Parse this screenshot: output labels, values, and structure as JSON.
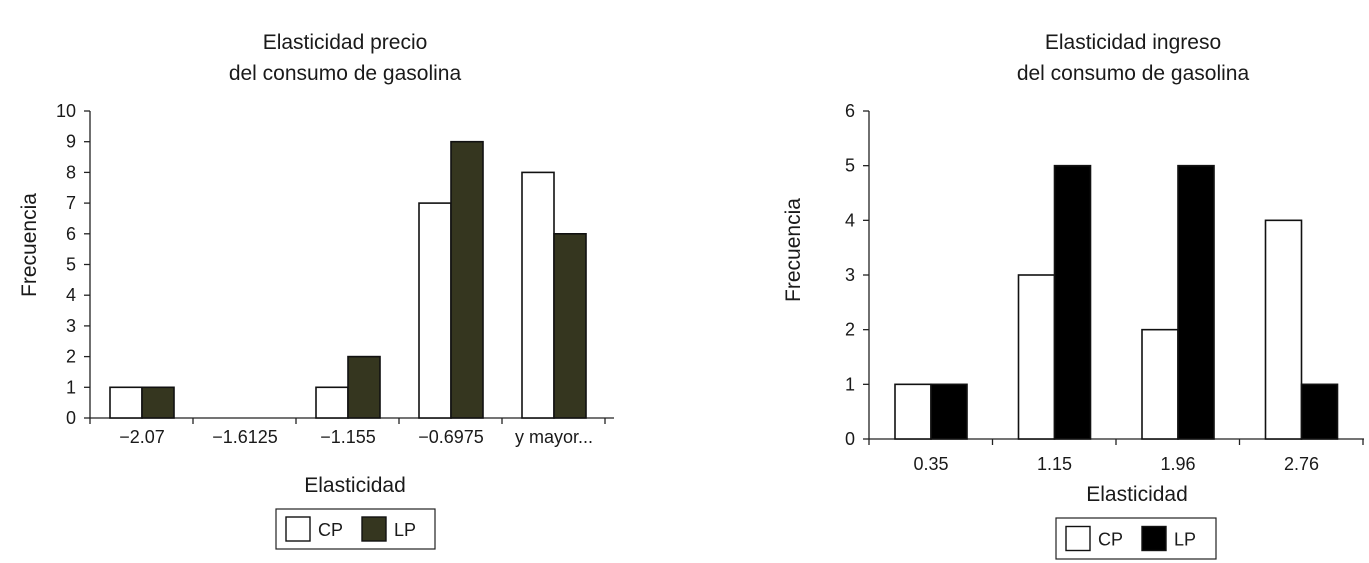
{
  "chart_data": [
    {
      "type": "bar",
      "title": [
        "Elasticidad precio",
        "del consumo de gasolina"
      ],
      "xlabel": "Elasticidad",
      "ylabel": "Frecuencia",
      "categories": [
        "−2.07",
        "−1.6125",
        "−1.155",
        "−0.6975",
        "y mayor..."
      ],
      "ylim": [
        0,
        10
      ],
      "yticks": [
        0,
        1,
        2,
        3,
        4,
        5,
        6,
        7,
        8,
        9,
        10
      ],
      "series": [
        {
          "name": "CP",
          "values": [
            1,
            0,
            1,
            7,
            8
          ],
          "color": "#ffffff"
        },
        {
          "name": "LP",
          "values": [
            1,
            0,
            2,
            9,
            6
          ],
          "color": "#35361f"
        }
      ],
      "grid": false,
      "legend": "bottom-center"
    },
    {
      "type": "bar",
      "title": [
        "Elasticidad ingreso",
        "del consumo de gasolina"
      ],
      "xlabel": "Elasticidad",
      "ylabel": "Frecuencia",
      "categories": [
        "0.35",
        "1.15",
        "1.96",
        "2.76"
      ],
      "ylim": [
        0,
        6
      ],
      "yticks": [
        0,
        1,
        2,
        3,
        4,
        5,
        6
      ],
      "series": [
        {
          "name": "CP",
          "values": [
            1,
            3,
            2,
            4
          ],
          "color": "#ffffff"
        },
        {
          "name": "LP",
          "values": [
            1,
            5,
            5,
            1
          ],
          "color": "#000000"
        }
      ],
      "grid": false,
      "legend": "bottom-center"
    }
  ]
}
